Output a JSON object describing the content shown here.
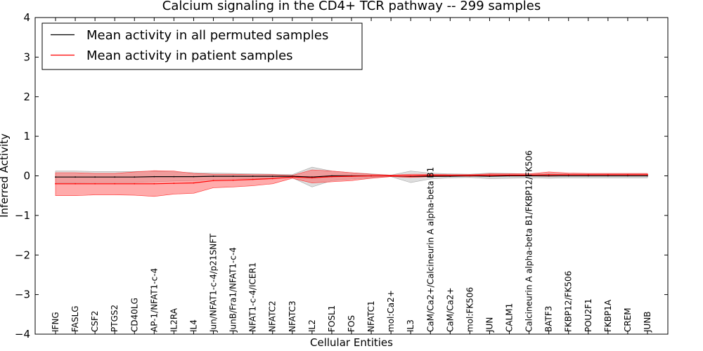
{
  "chart_data": {
    "type": "line",
    "title": "Calcium signaling in the CD4+ TCR pathway -- 299 samples",
    "xlabel": "Cellular Entities",
    "ylabel": "Inferred Activity",
    "ylim": [
      -4,
      4
    ],
    "yticks": [
      -4,
      -3,
      -2,
      -1,
      0,
      1,
      2,
      3,
      4
    ],
    "ytick_labels": [
      "−4",
      "−3",
      "−2",
      "−1",
      "0",
      "1",
      "2",
      "3",
      "4"
    ],
    "grid": false,
    "legend_position": "top-left",
    "categories": [
      "IFNG",
      "FASLG",
      "CSF2",
      "PTGS2",
      "CD40LG",
      "AP-1/NFAT1-c-4",
      "IL2RA",
      "IL4",
      "Jun/NFAT1-c-4/p21SNFT",
      "JunB/Fra1/NFAT1-c-4",
      "NFAT1-c-4/ICER1",
      "NFATC2",
      "NFATC3",
      "IL2",
      "FOSL1",
      "FOS",
      "NFATC1",
      "mol:Ca2+",
      "IL3",
      "CaM/Ca2+/Calcineurin A alpha-beta B1",
      "CaM/Ca2+",
      "mol:FK506",
      "JUN",
      "CALM1",
      "Calcineurin A alpha-beta B1/FKBP12/FK506",
      "BATF3",
      "FKBP12/FK506",
      "POU2F1",
      "FKBP1A",
      "CREM",
      "JUNB"
    ],
    "series": [
      {
        "name": "Mean activity in all permuted samples",
        "color": "#000000",
        "values": [
          -0.03,
          -0.03,
          -0.03,
          -0.03,
          -0.03,
          -0.02,
          -0.02,
          -0.02,
          -0.01,
          -0.01,
          -0.01,
          -0.01,
          -0.01,
          -0.03,
          0.0,
          0.0,
          0.0,
          0.0,
          -0.01,
          -0.01,
          -0.01,
          0.0,
          -0.01,
          0.0,
          0.0,
          0.0,
          0.0,
          0.0,
          0.0,
          0.0,
          0.0
        ],
        "lower": [
          -0.18,
          -0.18,
          -0.17,
          -0.17,
          -0.17,
          -0.15,
          -0.13,
          -0.12,
          -0.09,
          -0.08,
          -0.07,
          -0.06,
          -0.05,
          -0.28,
          -0.12,
          -0.08,
          -0.05,
          -0.02,
          -0.17,
          -0.08,
          -0.05,
          -0.04,
          -0.07,
          -0.06,
          -0.05,
          -0.06,
          -0.05,
          -0.05,
          -0.05,
          -0.05,
          -0.05
        ],
        "upper": [
          0.12,
          0.12,
          0.11,
          0.11,
          0.11,
          0.12,
          0.1,
          0.08,
          0.07,
          0.06,
          0.05,
          0.04,
          0.03,
          0.22,
          0.12,
          0.08,
          0.05,
          0.02,
          0.12,
          0.07,
          0.05,
          0.04,
          0.07,
          0.06,
          0.05,
          0.06,
          0.05,
          0.05,
          0.05,
          0.05,
          0.05
        ]
      },
      {
        "name": "Mean activity in patient samples",
        "color": "#ff0000",
        "fill": "#ff6666",
        "values": [
          -0.2,
          -0.2,
          -0.2,
          -0.2,
          -0.2,
          -0.2,
          -0.19,
          -0.18,
          -0.12,
          -0.11,
          -0.09,
          -0.07,
          -0.03,
          -0.05,
          -0.02,
          -0.01,
          0.0,
          0.0,
          0.0,
          0.01,
          0.01,
          0.01,
          0.02,
          0.02,
          0.02,
          0.03,
          0.03,
          0.03,
          0.03,
          0.03,
          0.03
        ],
        "lower": [
          -0.5,
          -0.5,
          -0.48,
          -0.48,
          -0.49,
          -0.52,
          -0.46,
          -0.44,
          -0.3,
          -0.28,
          -0.25,
          -0.2,
          -0.06,
          -0.18,
          -0.15,
          -0.12,
          -0.06,
          -0.02,
          -0.04,
          -0.02,
          -0.01,
          -0.01,
          0.0,
          0.0,
          0.0,
          -0.01,
          0.0,
          0.0,
          0.0,
          0.0,
          0.0
        ],
        "upper": [
          0.08,
          0.08,
          0.06,
          0.06,
          0.1,
          0.13,
          0.12,
          0.06,
          0.04,
          0.04,
          0.03,
          0.03,
          0.01,
          0.15,
          0.12,
          0.08,
          0.04,
          0.02,
          0.04,
          0.04,
          0.03,
          0.03,
          0.05,
          0.05,
          0.05,
          0.1,
          0.07,
          0.06,
          0.06,
          0.06,
          0.06
        ]
      }
    ]
  }
}
